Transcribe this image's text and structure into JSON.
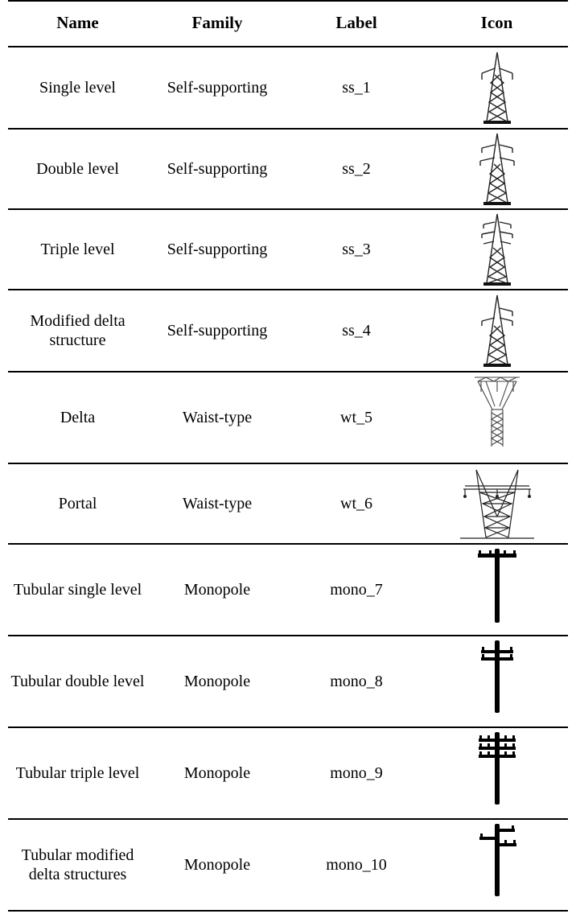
{
  "table": {
    "headers": {
      "name": "Name",
      "family": "Family",
      "label": "Label",
      "icon": "Icon"
    },
    "rows": [
      {
        "name": "Single level",
        "family": "Self-supporting",
        "label": "ss_1",
        "icon": "lattice-tower-single-icon"
      },
      {
        "name": "Double level",
        "family": "Self-supporting",
        "label": "ss_2",
        "icon": "lattice-tower-double-icon"
      },
      {
        "name": "Triple level",
        "family": "Self-supporting",
        "label": "ss_3",
        "icon": "lattice-tower-triple-icon"
      },
      {
        "name": "Modified delta structure",
        "family": "Self-supporting",
        "label": "ss_4",
        "icon": "lattice-tower-modified-delta-icon"
      },
      {
        "name": "Delta",
        "family": "Waist-type",
        "label": "wt_5",
        "icon": "delta-tower-icon"
      },
      {
        "name": "Portal",
        "family": "Waist-type",
        "label": "wt_6",
        "icon": "portal-tower-icon"
      },
      {
        "name": "Tubular single level",
        "family": "Monopole",
        "label": "mono_7",
        "icon": "monopole-single-icon"
      },
      {
        "name": "Tubular double level",
        "family": "Monopole",
        "label": "mono_8",
        "icon": "monopole-double-icon"
      },
      {
        "name": "Tubular triple level",
        "family": "Monopole",
        "label": "mono_9",
        "icon": "monopole-triple-icon"
      },
      {
        "name": "Tubular modified delta structures",
        "family": "Monopole",
        "label": "mono_10",
        "icon": "monopole-modified-delta-icon"
      }
    ]
  }
}
